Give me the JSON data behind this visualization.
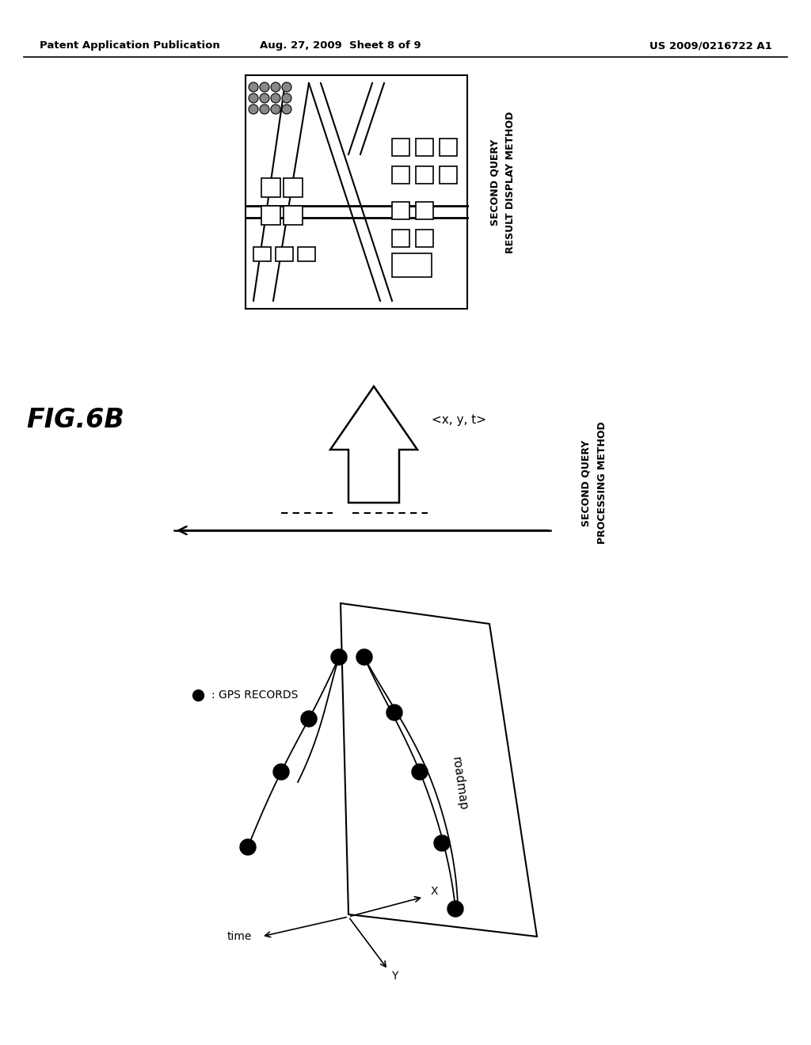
{
  "bg_color": "#ffffff",
  "header_left": "Patent Application Publication",
  "header_center": "Aug. 27, 2009  Sheet 8 of 9",
  "header_right": "US 2009/0216722 A1",
  "fig_label": "FIG.6B",
  "label_gps": ": GPS RECORDS",
  "label_roadmap": "roadmap",
  "axis_time": "time",
  "axis_y": "Y",
  "axis_x": "X",
  "arrow_label": "<x, y, t>",
  "right_label_top1": "SECOND QUERY",
  "right_label_top2": "RESULT DISPLAY METHOD",
  "right_label_mid1": "SECOND QUERY",
  "right_label_mid2": "PROCESSING METHOD"
}
